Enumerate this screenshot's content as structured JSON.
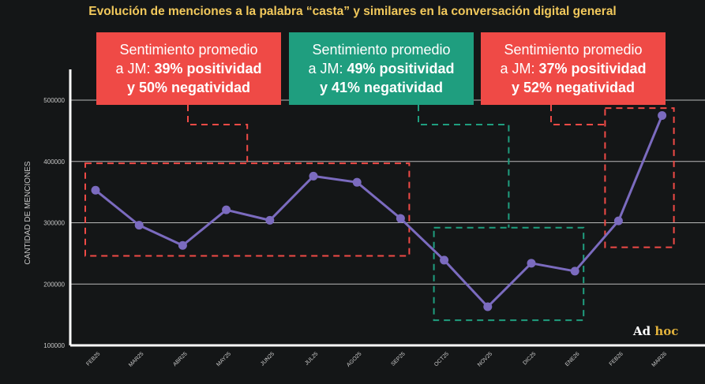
{
  "title": "Evolución de menciones a la palabra “casta” y similares en la conversación digital general",
  "callouts": [
    {
      "line1": "Sentimiento promedio",
      "prefix": "a JM: ",
      "pos": "39% positividad",
      "neg": "y 50% negatividad",
      "color": "#ef4a46"
    },
    {
      "line1": "Sentimiento promedio",
      "prefix": "a JM: ",
      "pos": "49% positividad",
      "neg": "y 41% negatividad",
      "color": "#1f9e7f"
    },
    {
      "line1": "Sentimiento promedio",
      "prefix": "a JM: ",
      "pos": "37% positividad",
      "neg": "y 52% negatividad",
      "color": "#ef4a46"
    }
  ],
  "logo": {
    "text_main": "Ad ",
    "text_accent": "hoc"
  },
  "chart_data": {
    "type": "line",
    "ylabel": "CANTIDAD DE MENCIONES",
    "xlabel": "",
    "categories": [
      "FEB25",
      "MAR25",
      "ABR25",
      "MAY25",
      "JUN25",
      "JUL25",
      "AGO25",
      "SEP25",
      "OCT25",
      "NOV25",
      "DIC25",
      "ENE26",
      "FEB26",
      "MAR26"
    ],
    "values": [
      353000,
      296000,
      263000,
      321000,
      304000,
      376000,
      366000,
      307000,
      239000,
      163000,
      234000,
      221000,
      303000,
      475000
    ],
    "ylim": [
      100000,
      500000
    ],
    "yticks": [
      100000,
      200000,
      300000,
      400000,
      500000
    ],
    "ytick_labels": [
      "100000",
      "200000",
      "300000",
      "400000",
      "500000"
    ],
    "grid": true,
    "line_color": "#7b6bbf",
    "periods": [
      {
        "start": "FEB25",
        "end": "SEP25",
        "color": "#ef4a46",
        "ylim": [
          246000,
          397000
        ]
      },
      {
        "start": "OCT25",
        "end": "ENE26",
        "color": "#1f9e7f",
        "ylim": [
          141000,
          292000
        ]
      },
      {
        "start": "FEB26",
        "end": "MAR26",
        "color": "#ef4a46",
        "ylim": [
          260000,
          487000
        ]
      }
    ]
  }
}
